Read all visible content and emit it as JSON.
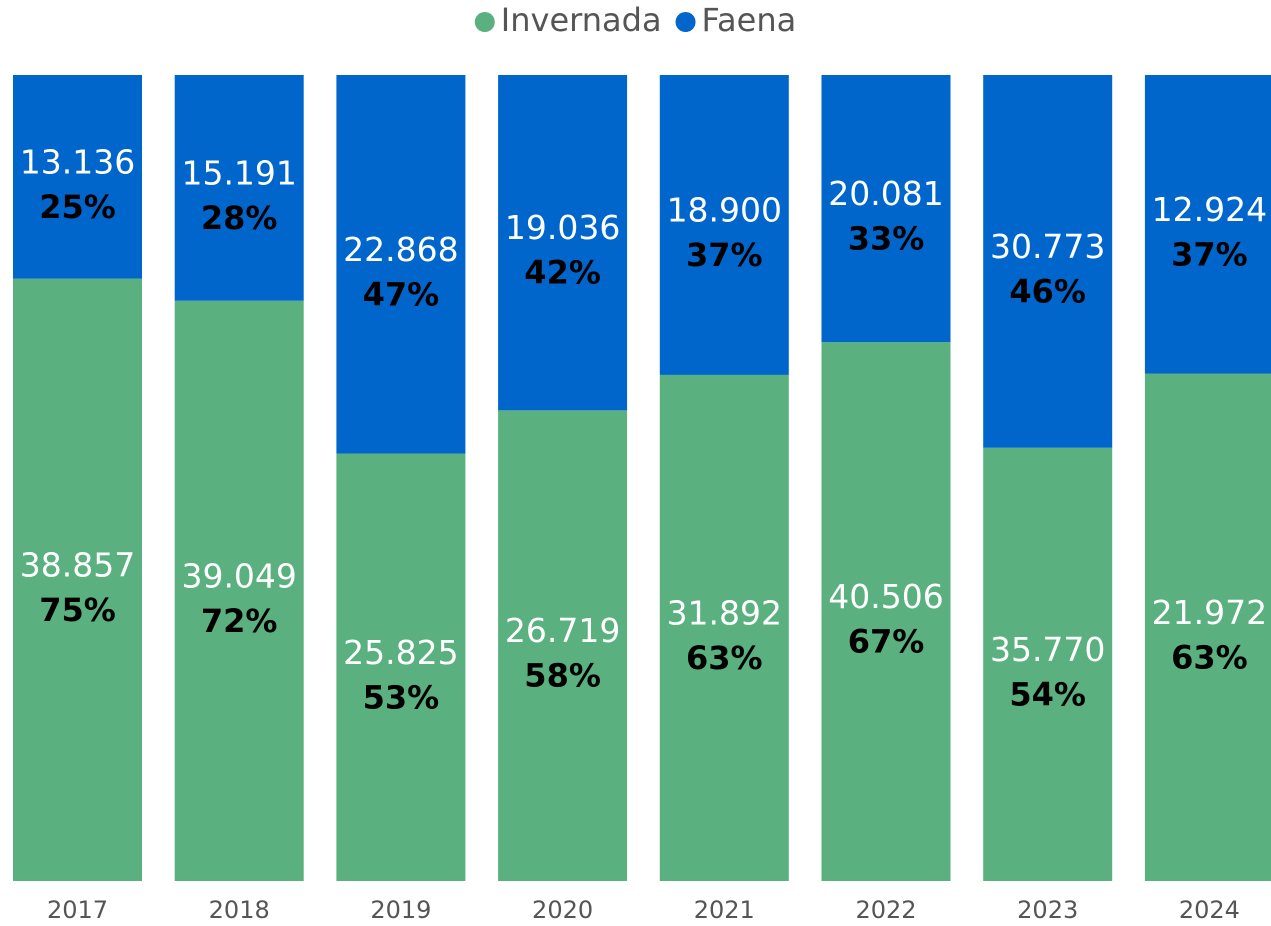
{
  "chart_data": {
    "type": "stacked_percent_bar",
    "categories": [
      "2017",
      "2018",
      "2019",
      "2020",
      "2021",
      "2022",
      "2023",
      "2024"
    ],
    "series": [
      {
        "name": "Invernada",
        "color": "#5ab07e",
        "values": [
          38857,
          39049,
          25825,
          26719,
          31892,
          40506,
          35770,
          21972
        ],
        "value_labels": [
          "38.857",
          "39.049",
          "25.825",
          "26.719",
          "31.892",
          "40.506",
          "35.770",
          "21.972"
        ],
        "shares": [
          75,
          72,
          53,
          58,
          63,
          67,
          54,
          63
        ],
        "share_labels": [
          "75%",
          "72%",
          "53%",
          "58%",
          "63%",
          "67%",
          "54%",
          "63%"
        ]
      },
      {
        "name": "Faena",
        "color": "#0066cc",
        "values": [
          13136,
          15191,
          22868,
          19036,
          18900,
          20081,
          30773,
          12924
        ],
        "value_labels": [
          "13.136",
          "15.191",
          "22.868",
          "19.036",
          "18.900",
          "20.081",
          "30.773",
          "12.924"
        ],
        "shares": [
          25,
          28,
          47,
          42,
          37,
          33,
          46,
          37
        ],
        "share_labels": [
          "25%",
          "28%",
          "47%",
          "42%",
          "37%",
          "33%",
          "46%",
          "37%"
        ]
      }
    ],
    "legend": "top"
  }
}
